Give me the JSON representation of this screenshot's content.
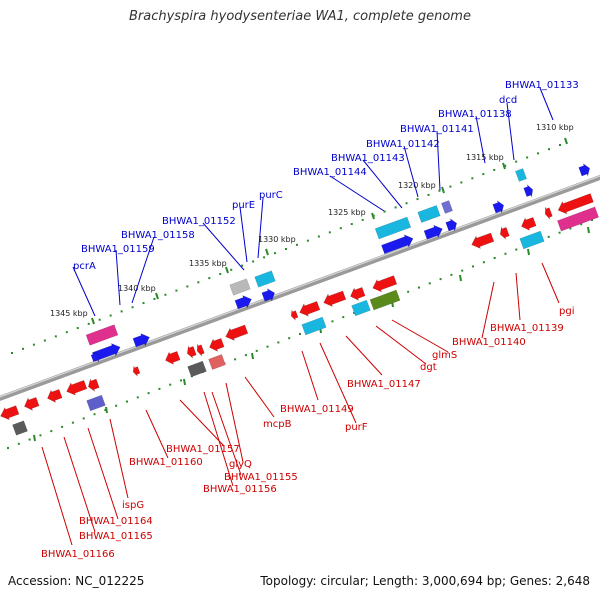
{
  "title": "Brachyspira hyodysenteriae WA1, complete genome",
  "footer": {
    "accession": "Accession: NC_012225",
    "summary": "Topology: circular; Length: 3,000,694 bp; Genes: 2,648"
  },
  "colors": {
    "backbone": "#8c8c8c",
    "forward_label": "#0000cc",
    "reverse_label": "#cc0000",
    "tick": "#2a8a2a"
  },
  "scale": {
    "ticks": [
      "1345 kbp",
      "1340 kbp",
      "1335 kbp",
      "1330 kbp",
      "1325 kbp",
      "1320 kbp",
      "1315 kbp",
      "1310 kbp"
    ]
  },
  "forward_labels": [
    "pcrA",
    "BHWA1_01159",
    "BHWA1_01158",
    "BHWA1_01152",
    "purE",
    "purC",
    "BHWA1_01144",
    "BHWA1_01143",
    "BHWA1_01142",
    "BHWA1_01141",
    "BHWA1_01138",
    "dcd",
    "BHWA1_01133"
  ],
  "reverse_labels": [
    "BHWA1_01166",
    "BHWA1_01165",
    "BHWA1_01164",
    "ispG",
    "BHWA1_01160",
    "BHWA1_01157",
    "BHWA1_01156",
    "BHWA1_01155",
    "glyQ",
    "mcpB",
    "BHWA1_01149",
    "purF",
    "BHWA1_01147",
    "dgt",
    "glmS",
    "BHWA1_01140",
    "BHWA1_01139",
    "pgi"
  ]
}
